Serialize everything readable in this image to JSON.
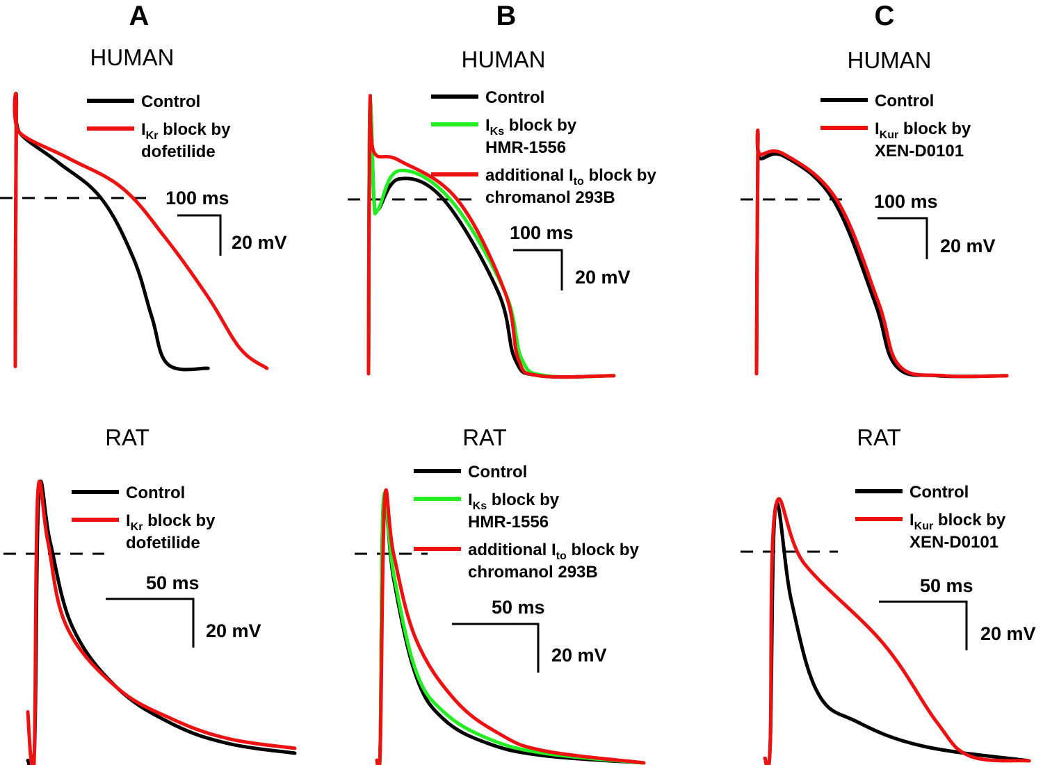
{
  "colors": {
    "control": "#000000",
    "iks": "#22ee22",
    "red": "#ee1111"
  },
  "panels": [
    {
      "letter": "A",
      "species": "HUMAN",
      "legend": [
        {
          "color_key": "control",
          "main": "Control",
          "line2": ""
        },
        {
          "color_key": "red",
          "main": "I",
          "sub": "Kr",
          "rest": " block by",
          "line2": "dofetilide"
        }
      ],
      "scale": {
        "time": "100 ms",
        "volt": "20 mV"
      }
    },
    {
      "letter": "B",
      "species": "HUMAN",
      "legend": [
        {
          "color_key": "control",
          "main": "Control",
          "line2": ""
        },
        {
          "color_key": "iks",
          "main": "I",
          "sub": "Ks",
          "rest": " block by",
          "line2": "HMR-1556"
        },
        {
          "color_key": "red",
          "main": "additional I",
          "sub": "to",
          "rest": " block by",
          "line2": "chromanol 293B"
        }
      ],
      "scale": {
        "time": "100 ms",
        "volt": "20 mV"
      }
    },
    {
      "letter": "C",
      "species": "HUMAN",
      "legend": [
        {
          "color_key": "control",
          "main": "Control",
          "line2": ""
        },
        {
          "color_key": "red",
          "main": "I",
          "sub": "Kur",
          "rest": " block by",
          "line2": "XEN-D0101"
        }
      ],
      "scale": {
        "time": "100 ms",
        "volt": "20 mV"
      }
    },
    {
      "letter": "",
      "species": "RAT",
      "legend": [
        {
          "color_key": "control",
          "main": "Control",
          "line2": ""
        },
        {
          "color_key": "red",
          "main": "I",
          "sub": "Kr",
          "rest": " block by",
          "line2": "dofetilide"
        }
      ],
      "scale": {
        "time": "50 ms",
        "volt": "20 mV"
      }
    },
    {
      "letter": "",
      "species": "RAT",
      "legend": [
        {
          "color_key": "control",
          "main": "Control",
          "line2": ""
        },
        {
          "color_key": "iks",
          "main": "I",
          "sub": "Ks",
          "rest": " block by",
          "line2": "HMR-1556"
        },
        {
          "color_key": "red",
          "main": "additional I",
          "sub": "to",
          "rest": " block by",
          "line2": "chromanol 293B"
        }
      ],
      "scale": {
        "time": "50 ms",
        "volt": "20 mV"
      }
    },
    {
      "letter": "",
      "species": "RAT",
      "legend": [
        {
          "color_key": "control",
          "main": "Control",
          "line2": ""
        },
        {
          "color_key": "red",
          "main": "I",
          "sub": "Kur",
          "rest": " block by",
          "line2": "XEN-D0101"
        }
      ],
      "scale": {
        "time": "50 ms",
        "volt": "20 mV"
      }
    }
  ],
  "chart_data": {
    "type": "line",
    "panels": [
      {
        "series": [
          {
            "name": "Control",
            "color_key": "control",
            "points": [
              [
                0,
                -85
              ],
              [
                2,
                45
              ],
              [
                8,
                33
              ],
              [
                80,
                18
              ],
              [
                160,
                0
              ],
              [
                220,
                -30
              ],
              [
                255,
                -60
              ],
              [
                285,
                -84
              ],
              [
                360,
                -86
              ]
            ]
          },
          {
            "name": "IKr block by dofetilide",
            "color_key": "red",
            "points": [
              [
                0,
                -85
              ],
              [
                2,
                45
              ],
              [
                8,
                33
              ],
              [
                100,
                20
              ],
              [
                200,
                5
              ],
              [
                280,
                -20
              ],
              [
                360,
                -50
              ],
              [
                420,
                -76
              ],
              [
                470,
                -86
              ]
            ]
          }
        ]
      },
      {
        "series": [
          {
            "name": "Control",
            "color_key": "control",
            "points": [
              [
                0,
                -85
              ],
              [
                2,
                45
              ],
              [
                8,
                0
              ],
              [
                14,
                -5
              ],
              [
                45,
                10
              ],
              [
                110,
                0
              ],
              [
                190,
                -45
              ],
              [
                215,
                -78
              ],
              [
                250,
                -86
              ],
              [
                360,
                -86
              ]
            ]
          },
          {
            "name": "IKs block by HMR-1556",
            "color_key": "iks",
            "points": [
              [
                0,
                -85
              ],
              [
                2,
                45
              ],
              [
                8,
                0
              ],
              [
                14,
                -5
              ],
              [
                45,
                14
              ],
              [
                120,
                0
              ],
              [
                200,
                -45
              ],
              [
                225,
                -78
              ],
              [
                260,
                -86
              ],
              [
                360,
                -86
              ]
            ]
          },
          {
            "name": "additional Ito block by chromanol 293B",
            "color_key": "red",
            "points": [
              [
                0,
                -85
              ],
              [
                2,
                45
              ],
              [
                8,
                23
              ],
              [
                45,
                19
              ],
              [
                130,
                0
              ],
              [
                200,
                -45
              ],
              [
                220,
                -78
              ],
              [
                250,
                -86
              ],
              [
                360,
                -86
              ]
            ]
          }
        ]
      },
      {
        "series": [
          {
            "name": "Control",
            "color_key": "control",
            "points": [
              [
                0,
                -85
              ],
              [
                2,
                26
              ],
              [
                5,
                20
              ],
              [
                40,
                21
              ],
              [
                110,
                0
              ],
              [
                170,
                -50
              ],
              [
                200,
                -81
              ],
              [
                260,
                -86
              ],
              [
                360,
                -86
              ]
            ]
          },
          {
            "name": "IKur block by XEN-D0101",
            "color_key": "red",
            "points": [
              [
                0,
                -85
              ],
              [
                2,
                26
              ],
              [
                5,
                22
              ],
              [
                40,
                22
              ],
              [
                115,
                0
              ],
              [
                175,
                -50
              ],
              [
                205,
                -81
              ],
              [
                270,
                -86
              ],
              [
                360,
                -86
              ]
            ]
          }
        ]
      },
      {
        "series": [
          {
            "name": "Control",
            "color_key": "control",
            "points": [
              [
                0,
                -85
              ],
              [
                6,
                -80
              ],
              [
                10,
                25
              ],
              [
                20,
                5
              ],
              [
                40,
                -30
              ],
              [
                80,
                -55
              ],
              [
                130,
                -70
              ],
              [
                180,
                -78
              ],
              [
                240,
                -82
              ]
            ]
          },
          {
            "name": "IKr block by dofetilide",
            "color_key": "red",
            "points": [
              [
                0,
                -65
              ],
              [
                3,
                -85
              ],
              [
                6,
                -80
              ],
              [
                9,
                25
              ],
              [
                18,
                5
              ],
              [
                35,
                -30
              ],
              [
                80,
                -55
              ],
              [
                130,
                -68
              ],
              [
                180,
                -76
              ],
              [
                240,
                -80
              ]
            ]
          }
        ]
      },
      {
        "series": [
          {
            "name": "Control",
            "color_key": "control",
            "points": [
              [
                0,
                -85
              ],
              [
                3,
                -80
              ],
              [
                6,
                22
              ],
              [
                15,
                -10
              ],
              [
                35,
                -50
              ],
              [
                60,
                -68
              ],
              [
                100,
                -78
              ],
              [
                150,
                -83
              ],
              [
                240,
                -86
              ]
            ]
          },
          {
            "name": "IKs block by HMR-1556",
            "color_key": "iks",
            "points": [
              [
                0,
                -85
              ],
              [
                3,
                -80
              ],
              [
                6,
                22
              ],
              [
                15,
                -8
              ],
              [
                35,
                -48
              ],
              [
                60,
                -65
              ],
              [
                100,
                -76
              ],
              [
                150,
                -82
              ],
              [
                240,
                -86
              ]
            ]
          },
          {
            "name": "additional Ito block by chromanol 293B",
            "color_key": "red",
            "points": [
              [
                0,
                -85
              ],
              [
                3,
                -80
              ],
              [
                7,
                22
              ],
              [
                15,
                0
              ],
              [
                35,
                -35
              ],
              [
                70,
                -60
              ],
              [
                110,
                -74
              ],
              [
                150,
                -81
              ],
              [
                240,
                -86
              ]
            ]
          }
        ]
      },
      {
        "series": [
          {
            "name": "Control",
            "color_key": "control",
            "points": [
              [
                0,
                -85
              ],
              [
                4,
                -80
              ],
              [
                8,
                18
              ],
              [
                20,
                -20
              ],
              [
                40,
                -58
              ],
              [
                70,
                -70
              ],
              [
                120,
                -80
              ],
              [
                200,
                -86
              ]
            ]
          },
          {
            "name": "IKur block by XEN-D0101",
            "color_key": "red",
            "points": [
              [
                0,
                -85
              ],
              [
                4,
                -80
              ],
              [
                8,
                18
              ],
              [
                30,
                -5
              ],
              [
                90,
                -38
              ],
              [
                130,
                -70
              ],
              [
                155,
                -84
              ],
              [
                200,
                -86
              ]
            ]
          }
        ]
      }
    ]
  }
}
